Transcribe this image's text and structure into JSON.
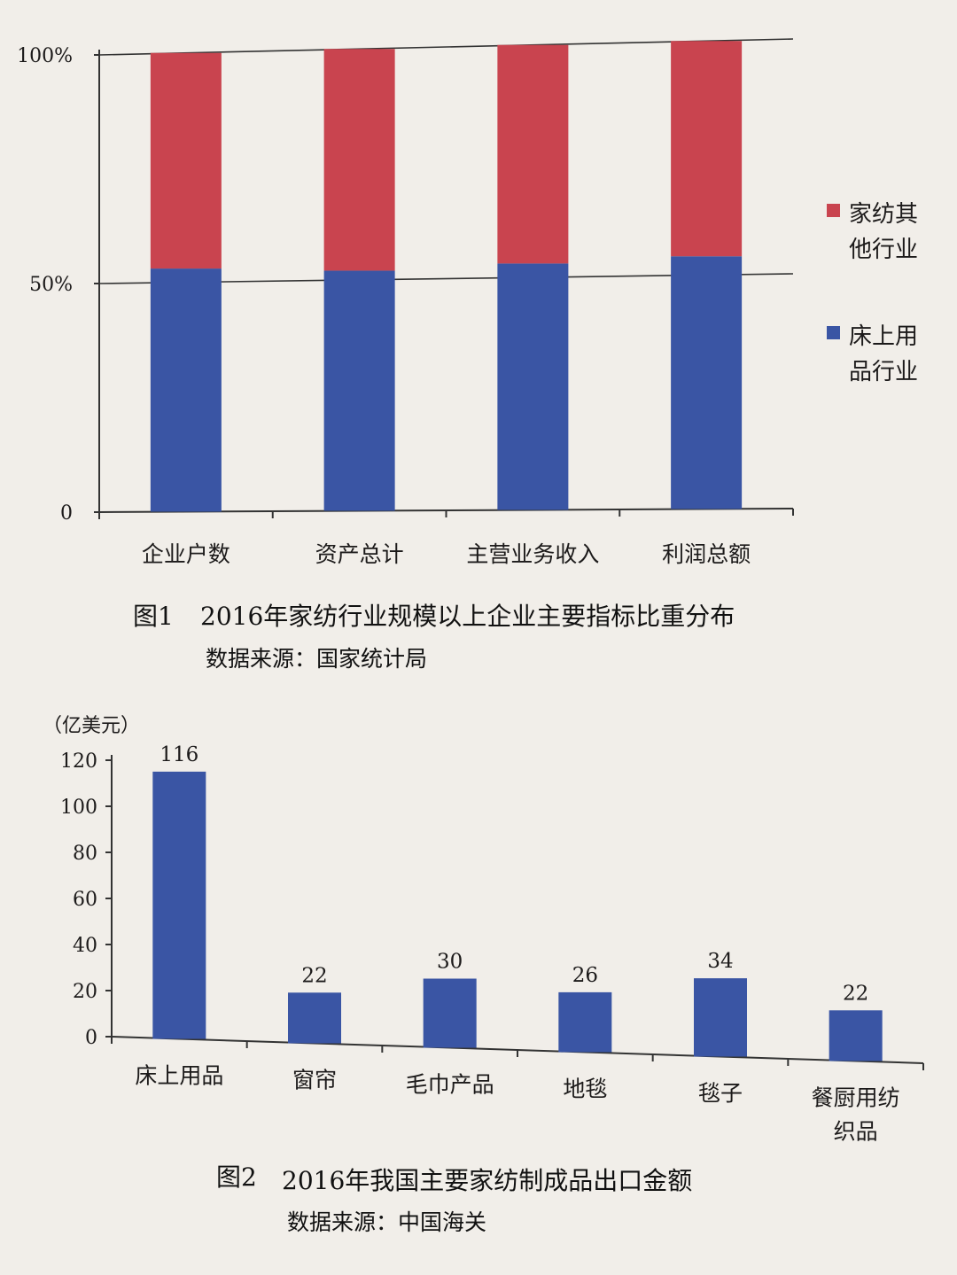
{
  "chart_data": [
    {
      "type": "bar",
      "stacked": true,
      "categories": [
        "企业户数",
        "资产总计",
        "主营业务收入",
        "利润总额"
      ],
      "series": [
        {
          "name": "床上用品行业",
          "values": [
            53,
            52,
            53,
            54
          ],
          "color": "#3a55a4"
        },
        {
          "name": "家纺其他行业",
          "values": [
            47,
            48,
            47,
            46
          ],
          "color": "#c9444f"
        }
      ],
      "y_ticks": [
        "0",
        "50%",
        "100%"
      ],
      "ylim": [
        0,
        100
      ],
      "grid": "horizontal at 50% and 100%",
      "legend_position": "right",
      "legend_labels": [
        [
          "家纺其",
          "他行业"
        ],
        [
          "床上用",
          "品行业"
        ]
      ],
      "caption": {
        "number": "图1",
        "title": "2016年家纺行业规模以上企业主要指标比重分布"
      },
      "source": "数据来源：国家统计局"
    },
    {
      "type": "bar",
      "categories": [
        "床上用品",
        "窗帘",
        "毛巾产品",
        "地毯",
        "毯子",
        "餐厨用纺织品"
      ],
      "category_lines": [
        [
          "床上用品"
        ],
        [
          "窗帘"
        ],
        [
          "毛巾产品"
        ],
        [
          "地毯"
        ],
        [
          "毯子"
        ],
        [
          "餐厨用纺",
          "织品"
        ]
      ],
      "values": [
        116,
        22,
        30,
        26,
        34,
        22
      ],
      "data_labels": [
        "116",
        "22",
        "30",
        "26",
        "34",
        "22"
      ],
      "color": "#3a55a4",
      "unit": "（亿美元）",
      "y_ticks": [
        "0",
        "20",
        "40",
        "60",
        "80",
        "100",
        "120"
      ],
      "ylim": [
        0,
        120
      ],
      "grid": false,
      "caption": {
        "number": "图2",
        "title": "2016年我国主要家纺制成品出口金额"
      },
      "source": "数据来源：中国海关"
    }
  ]
}
